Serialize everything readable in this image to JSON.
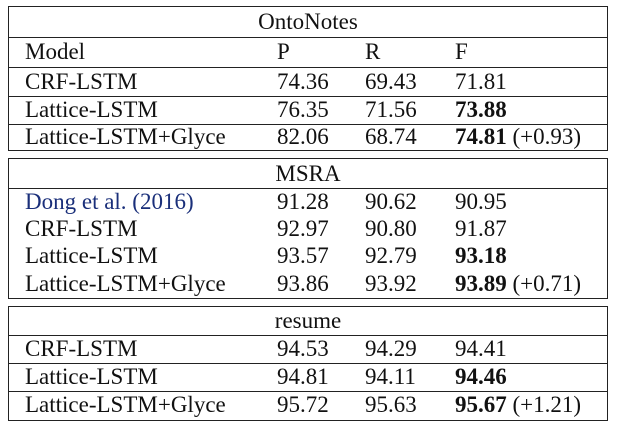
{
  "ontonotes": {
    "title": "OntoNotes",
    "header": {
      "model": "Model",
      "p": "P",
      "r": "R",
      "f": "F"
    },
    "rows": [
      {
        "model": "CRF-LSTM",
        "p": "74.36",
        "r": "69.43",
        "f": "71.81",
        "delta": ""
      },
      {
        "model": "Lattice-LSTM",
        "p": "76.35",
        "r": "71.56",
        "f": "73.88",
        "delta": ""
      },
      {
        "model": "Lattice-LSTM+Glyce",
        "p": "82.06",
        "r": "68.74",
        "f": "74.81",
        "delta": " (+0.93)"
      }
    ]
  },
  "msra": {
    "title": "MSRA",
    "rows": [
      {
        "model": "Dong et al. (2016)",
        "p": "91.28",
        "r": "90.62",
        "f": "90.95",
        "delta": ""
      },
      {
        "model": "CRF-LSTM",
        "p": "92.97",
        "r": "90.80",
        "f": "91.87",
        "delta": ""
      },
      {
        "model": "Lattice-LSTM",
        "p": "93.57",
        "r": "92.79",
        "f": "93.18",
        "delta": ""
      },
      {
        "model": "Lattice-LSTM+Glyce",
        "p": "93.86",
        "r": "93.92",
        "f": "93.89",
        "delta": " (+0.71)"
      }
    ]
  },
  "resume": {
    "title": "resume",
    "rows": [
      {
        "model": "CRF-LSTM",
        "p": "94.53",
        "r": "94.29",
        "f": "94.41",
        "delta": ""
      },
      {
        "model": "Lattice-LSTM",
        "p": "94.81",
        "r": "94.11",
        "f": "94.46",
        "delta": ""
      },
      {
        "model": "Lattice-LSTM+Glyce",
        "p": "95.72",
        "r": "95.63",
        "f": "95.67",
        "delta": " (+1.21)"
      }
    ]
  }
}
